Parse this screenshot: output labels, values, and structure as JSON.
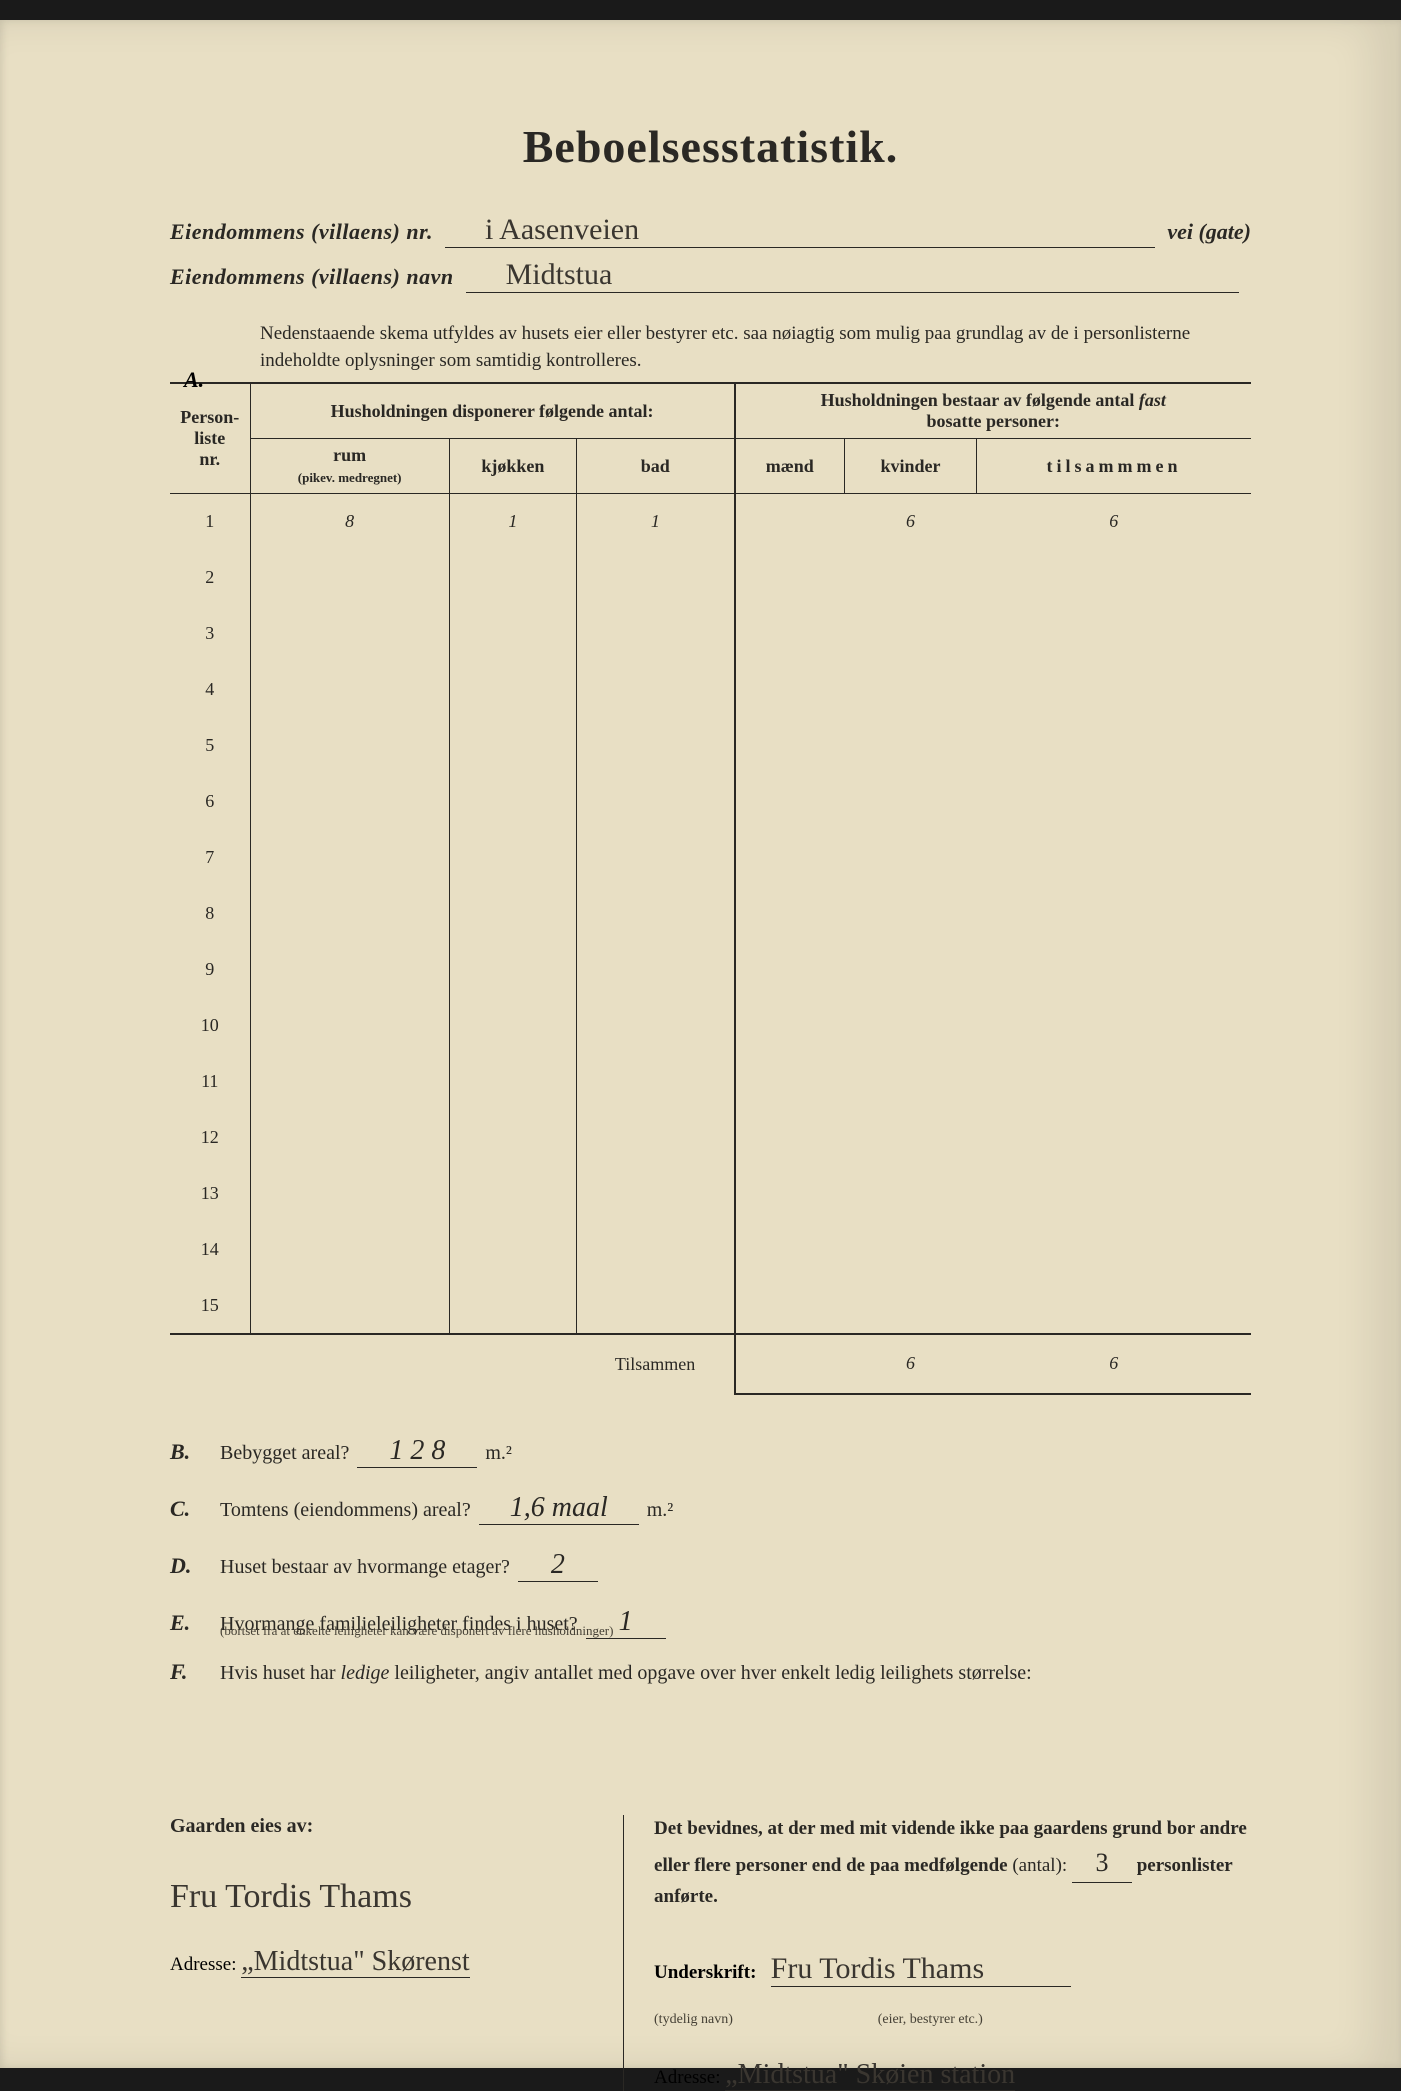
{
  "title": "Beboelsesstatistik.",
  "property": {
    "nr_label": "Eiendommens (villaens) nr.",
    "nr_value": "i    Aasenveien",
    "nr_suffix": "vei (gate)",
    "navn_label": "Eiendommens (villaens) navn",
    "navn_value": "Midtstua"
  },
  "sectionA": {
    "letter": "A.",
    "note": "Nedenstaaende skema utfyldes av husets eier eller bestyrer etc. saa nøiagtig som mulig paa grundlag av de i personlisterne indeholdte oplysninger som samtidig kontrolleres.",
    "col_personliste": "Person-\nliste\nnr.",
    "group_left": "Husholdningen disponerer følgende antal:",
    "group_right": "Husholdningen bestaar av følgende antal fast bosatte personer:",
    "col_rum": "rum",
    "col_rum_sub": "(pikev. medregnet)",
    "col_kjokken": "kjøkken",
    "col_bad": "bad",
    "col_maend": "mænd",
    "col_kvinder": "kvinder",
    "col_tilsammen": "tilsammmen",
    "rows": [
      {
        "n": "1",
        "rum": "8",
        "kjokken": "1",
        "bad": "1",
        "maend": "",
        "kvinder": "6",
        "tilsammen": "6"
      },
      {
        "n": "2"
      },
      {
        "n": "3"
      },
      {
        "n": "4"
      },
      {
        "n": "5"
      },
      {
        "n": "6"
      },
      {
        "n": "7"
      },
      {
        "n": "8"
      },
      {
        "n": "9"
      },
      {
        "n": "10"
      },
      {
        "n": "11"
      },
      {
        "n": "12"
      },
      {
        "n": "13"
      },
      {
        "n": "14"
      },
      {
        "n": "15"
      }
    ],
    "total_label": "Tilsammen",
    "total_kvinder": "6",
    "total_tilsammen": "6"
  },
  "questions": {
    "B": {
      "letter": "B.",
      "text": "Bebygget areal?",
      "value": "1 2 8",
      "unit": "m.²"
    },
    "C": {
      "letter": "C.",
      "text": "Tomtens (eiendommens) areal?",
      "value": "1,6 maal",
      "unit": "m.²"
    },
    "D": {
      "letter": "D.",
      "text": "Huset bestaar av hvormange etager?",
      "value": "2"
    },
    "E": {
      "letter": "E.",
      "text": "Hvormange familieleiligheter findes i huset?",
      "value": "1",
      "sub": "(bortset fra at enkelte leiligheter kan være disponert av flere husholdninger)"
    },
    "F": {
      "letter": "F.",
      "text": "Hvis huset har ledige leiligheter, angiv antallet med opgave over hver enkelt ledig leilighets størrelse:"
    }
  },
  "bottom": {
    "left_heading": "Gaarden eies av:",
    "owner_sig": "Fru Tordis Thams",
    "left_addr_label": "Adresse:",
    "left_addr": "„Midtstua\" Skørenst",
    "right_text": "Det bevidnes, at der med mit vidende ikke paa gaardens grund bor andre eller flere personer end de paa medfølgende (antal):",
    "antal_value": "3",
    "right_text2": "personlister anførte.",
    "underskrift_label": "Underskrift:",
    "underskrift_sub": "(tydelig navn)",
    "underskrift_sig": "Fru Tordis Thams",
    "underskrift_role": "(eier, bestyrer etc.)",
    "right_addr_label": "Adresse:",
    "right_addr": "„Midtstua\"  Skøien station"
  },
  "colors": {
    "paper": "#e8dfc4",
    "ink": "#2a2824",
    "handwriting": "#3a3630"
  }
}
